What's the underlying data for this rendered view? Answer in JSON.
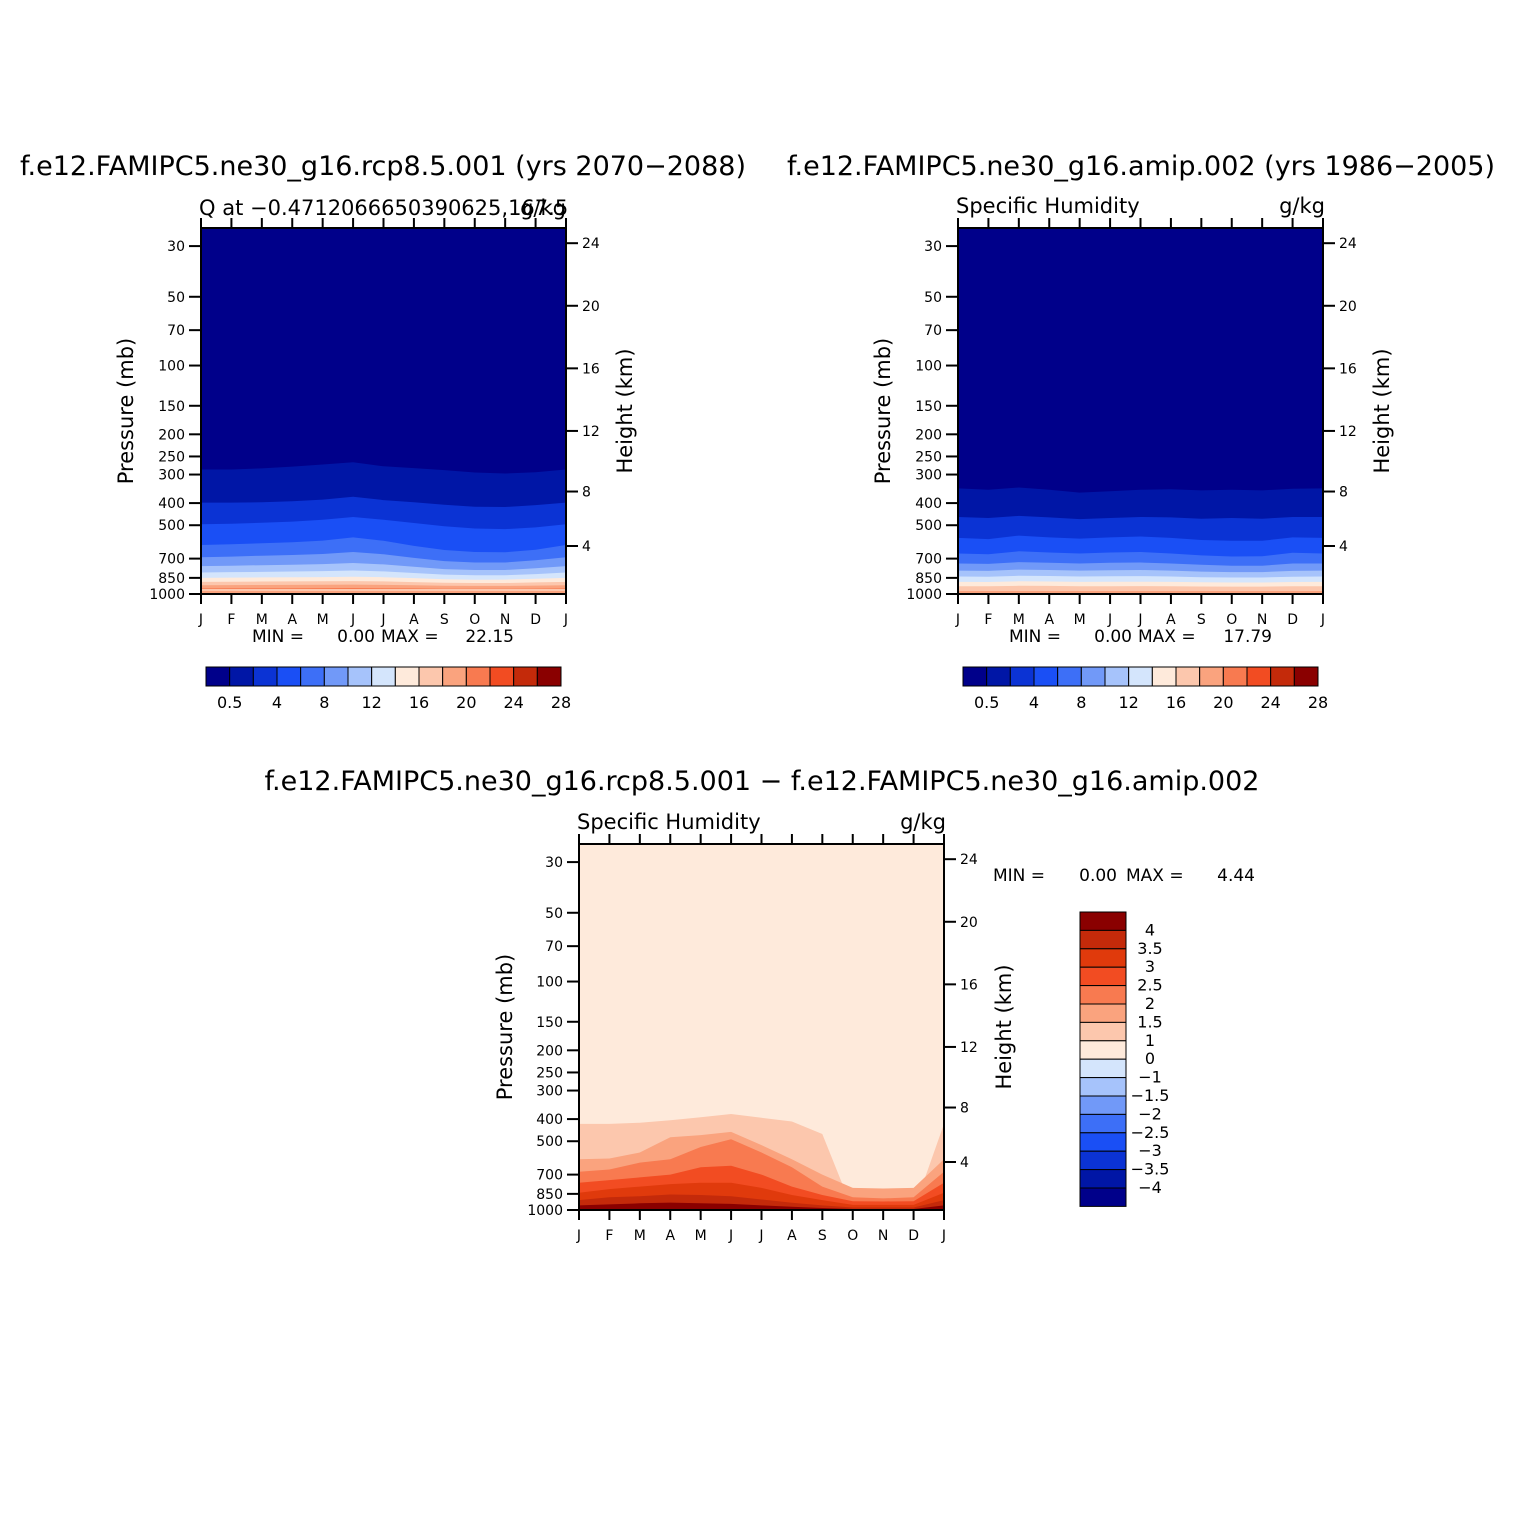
{
  "palette": [
    "#00008a",
    "#0016a6",
    "#0b33d4",
    "#1a4ff5",
    "#3d6ff7",
    "#7199f8",
    "#a6c3fb",
    "#d4e5fc",
    "#feeadb",
    "#fcc7ad",
    "#faa37e",
    "#f87a50",
    "#f24c22",
    "#c42a0a",
    "#8a0000"
  ],
  "months": [
    "J",
    "F",
    "M",
    "A",
    "M",
    "J",
    "J",
    "A",
    "S",
    "O",
    "N",
    "D",
    "J"
  ],
  "pressure_ticks": [
    "30",
    "50",
    "70",
    "100",
    "150",
    "200",
    "250",
    "300",
    "400",
    "500",
    "700",
    "850",
    "1000"
  ],
  "height_ticks": [
    "24",
    "20",
    "16",
    "12",
    "8",
    "4"
  ],
  "pressure_axis_label": "Pressure (mb)",
  "height_axis_label": "Height (km)",
  "min_label": "MIN =",
  "max_label": "MAX =",
  "chart_data": [
    {
      "type": "heatmap",
      "title": "f.e12.FAMIPC5.ne30_g16.rcp8.5.001 (yrs 2070−2088)",
      "left_subtitle": "Q at −0.4712066650390625,167.5",
      "right_subtitle": "g/kg",
      "xlabel": "",
      "ylabel": "Pressure (mb)",
      "y2label": "Height (km)",
      "x_ticks": [
        "J",
        "F",
        "M",
        "A",
        "M",
        "J",
        "J",
        "A",
        "S",
        "O",
        "N",
        "D",
        "J"
      ],
      "y_ticks_pressure": [
        30,
        50,
        70,
        100,
        150,
        200,
        250,
        300,
        400,
        500,
        700,
        850,
        1000
      ],
      "y_ticks_height_km": [
        24,
        20,
        16,
        12,
        8,
        4
      ],
      "ylim_mb": [
        1000,
        25
      ],
      "min_value": "0.00",
      "max_value": "22.15",
      "colorbar_labels": [
        "0.5",
        "4",
        "8",
        "12",
        "16",
        "20",
        "24",
        "28"
      ],
      "contour_boundaries_mb": [
        {
          "level": 0.5,
          "p": [
            285,
            285,
            282,
            277,
            271,
            265,
            276,
            281,
            287,
            294,
            297,
            293,
            285
          ]
        },
        {
          "level": 2,
          "p": [
            398,
            398,
            397,
            393,
            386,
            375,
            388,
            397,
            407,
            415,
            416,
            408,
            398
          ]
        },
        {
          "level": 4,
          "p": [
            495,
            493,
            488,
            482,
            473,
            460,
            473,
            489,
            505,
            517,
            520,
            511,
            495
          ]
        },
        {
          "level": 6,
          "p": [
            610,
            606,
            600,
            594,
            584,
            565,
            585,
            616,
            642,
            655,
            657,
            640,
            610
          ]
        },
        {
          "level": 8,
          "p": [
            690,
            686,
            680,
            675,
            668,
            655,
            670,
            695,
            718,
            728,
            728,
            712,
            690
          ]
        },
        {
          "level": 10,
          "p": [
            755,
            752,
            748,
            745,
            740,
            732,
            742,
            760,
            778,
            785,
            785,
            772,
            755
          ]
        },
        {
          "level": 12,
          "p": [
            805,
            802,
            800,
            797,
            794,
            789,
            796,
            809,
            822,
            827,
            827,
            818,
            805
          ]
        },
        {
          "level": 14,
          "p": [
            850,
            848,
            846,
            845,
            843,
            840,
            844,
            852,
            862,
            866,
            865,
            858,
            850
          ]
        },
        {
          "level": 16,
          "p": [
            885,
            884,
            882,
            881,
            880,
            878,
            881,
            887,
            893,
            895,
            895,
            890,
            885
          ]
        },
        {
          "level": 18,
          "p": [
            915,
            914,
            913,
            912,
            911,
            910,
            912,
            916,
            920,
            922,
            922,
            919,
            915
          ]
        },
        {
          "level": 20,
          "p": [
            945,
            944,
            943,
            943,
            942,
            941,
            943,
            945,
            948,
            949,
            949,
            947,
            945
          ]
        },
        {
          "level": 22,
          "p": [
            972,
            972,
            971,
            971,
            971,
            970,
            971,
            972,
            974,
            975,
            975,
            974,
            972
          ]
        }
      ]
    },
    {
      "type": "heatmap",
      "title": "f.e12.FAMIPC5.ne30_g16.amip.002 (yrs 1986−2005)",
      "left_subtitle": "Specific Humidity",
      "right_subtitle": "g/kg",
      "xlabel": "",
      "ylabel": "Pressure (mb)",
      "y2label": "Height (km)",
      "x_ticks": [
        "J",
        "F",
        "M",
        "A",
        "M",
        "J",
        "J",
        "A",
        "S",
        "O",
        "N",
        "D",
        "J"
      ],
      "y_ticks_pressure": [
        30,
        50,
        70,
        100,
        150,
        200,
        250,
        300,
        400,
        500,
        700,
        850,
        1000
      ],
      "y_ticks_height_km": [
        24,
        20,
        16,
        12,
        8,
        4
      ],
      "ylim_mb": [
        1000,
        25
      ],
      "min_value": "0.00",
      "max_value": "17.79",
      "colorbar_labels": [
        "0.5",
        "4",
        "8",
        "12",
        "16",
        "20",
        "24",
        "28"
      ],
      "contour_boundaries_mb": [
        {
          "level": 0.5,
          "p": [
            345,
            350,
            342,
            350,
            360,
            355,
            350,
            348,
            352,
            350,
            352,
            346,
            345
          ]
        },
        {
          "level": 2,
          "p": [
            460,
            465,
            455,
            462,
            470,
            465,
            460,
            462,
            468,
            465,
            468,
            460,
            460
          ]
        },
        {
          "level": 4,
          "p": [
            568,
            575,
            555,
            565,
            572,
            565,
            560,
            568,
            580,
            585,
            585,
            565,
            568
          ]
        },
        {
          "level": 6,
          "p": [
            665,
            670,
            650,
            658,
            665,
            658,
            655,
            665,
            678,
            685,
            684,
            660,
            665
          ]
        },
        {
          "level": 8,
          "p": [
            735,
            738,
            725,
            730,
            735,
            730,
            728,
            735,
            745,
            752,
            752,
            735,
            735
          ]
        },
        {
          "level": 10,
          "p": [
            790,
            792,
            782,
            785,
            790,
            787,
            785,
            790,
            798,
            802,
            802,
            792,
            790
          ]
        },
        {
          "level": 12,
          "p": [
            838,
            840,
            832,
            834,
            838,
            836,
            835,
            838,
            844,
            847,
            847,
            840,
            838
          ]
        },
        {
          "level": 14,
          "p": [
            885,
            886,
            880,
            882,
            885,
            884,
            883,
            885,
            889,
            891,
            891,
            886,
            885
          ]
        },
        {
          "level": 16,
          "p": [
            925,
            925,
            921,
            922,
            924,
            924,
            923,
            925,
            927,
            928,
            928,
            925,
            925
          ]
        }
      ]
    },
    {
      "type": "heatmap",
      "title": "f.e12.FAMIPC5.ne30_g16.rcp8.5.001 − f.e12.FAMIPC5.ne30_g16.amip.002",
      "left_subtitle": "Specific Humidity",
      "right_subtitle": "g/kg",
      "xlabel": "",
      "ylabel": "Pressure (mb)",
      "y2label": "Height (km)",
      "x_ticks": [
        "J",
        "F",
        "M",
        "A",
        "M",
        "J",
        "J",
        "A",
        "S",
        "O",
        "N",
        "D",
        "J"
      ],
      "y_ticks_pressure": [
        30,
        50,
        70,
        100,
        150,
        200,
        250,
        300,
        400,
        500,
        700,
        850,
        1000
      ],
      "y_ticks_height_km": [
        24,
        20,
        16,
        12,
        8,
        4
      ],
      "ylim_mb": [
        1000,
        25
      ],
      "min_value": "0.00",
      "max_value": "4.44",
      "colorbar_labels": [
        "4",
        "3.5",
        "3",
        "2.5",
        "2",
        "1.5",
        "1",
        "0",
        "−1",
        "−1.5",
        "−2",
        "−2.5",
        "−3",
        "−3.5",
        "−4"
      ],
      "colorbar_colors": [
        "#8a0000",
        "#c42a0a",
        "#e03a0c",
        "#f24c22",
        "#f87a50",
        "#faa37e",
        "#fcc7ad",
        "#feeadb",
        "#d4e5fc",
        "#a6c3fb",
        "#7199f8",
        "#3d6ff7",
        "#1a4ff5",
        "#0b33d4",
        "#0016a6",
        "#00008a"
      ],
      "contour_boundaries_mb": [
        {
          "level": 0,
          "p": [
            420,
            420,
            415,
            405,
            393,
            380,
            395,
            410,
            465,
            1000,
            1000,
            1000,
            420
          ]
        },
        {
          "level": 1,
          "p": [
            600,
            595,
            560,
            480,
            470,
            455,
            520,
            600,
            700,
            800,
            805,
            800,
            600
          ]
        },
        {
          "level": 1.5,
          "p": [
            680,
            665,
            620,
            600,
            530,
            490,
            560,
            650,
            790,
            880,
            890,
            880,
            680
          ]
        },
        {
          "level": 2,
          "p": [
            760,
            740,
            720,
            700,
            650,
            640,
            700,
            790,
            860,
            915,
            918,
            915,
            760
          ]
        },
        {
          "level": 2.5,
          "p": [
            840,
            810,
            790,
            770,
            760,
            760,
            800,
            860,
            905,
            950,
            950,
            950,
            840
          ]
        },
        {
          "level": 3,
          "p": [
            905,
            880,
            870,
            855,
            860,
            870,
            900,
            930,
            955,
            975,
            975,
            975,
            905
          ]
        },
        {
          "level": 3.5,
          "p": [
            955,
            945,
            935,
            928,
            935,
            940,
            955,
            968,
            980,
            990,
            990,
            990,
            955
          ]
        }
      ]
    }
  ]
}
